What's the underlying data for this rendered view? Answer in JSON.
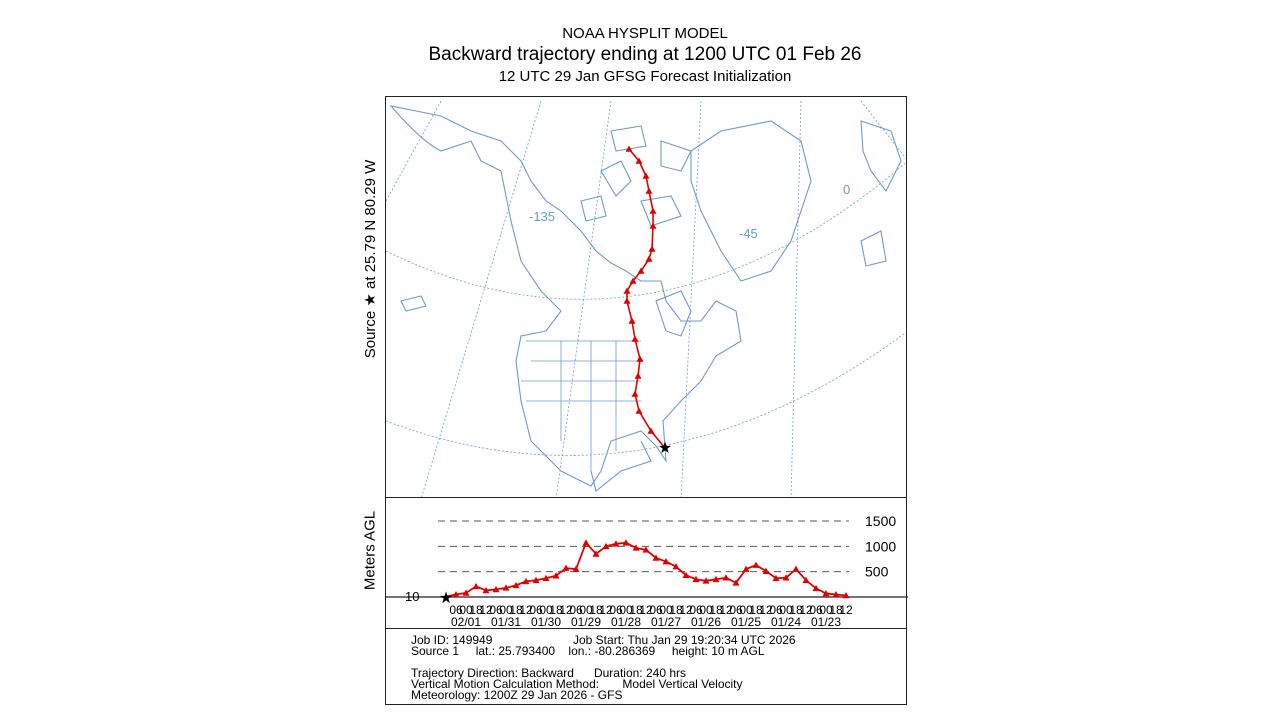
{
  "header": {
    "title": "NOAA HYSPLIT MODEL",
    "subtitle": "Backward trajectory ending at 1200 UTC 01 Feb 26",
    "initialization": "12 UTC 29 Jan    GFSG  Forecast Initialization"
  },
  "source_label": "Source ★ at   25.79 N   80.29 W",
  "map": {
    "meridian_labels": [
      "-135",
      "-45",
      "0"
    ],
    "coast_color": "#6b9bd1",
    "trajectory_color": "#e00000"
  },
  "chart_data": {
    "type": "line",
    "ylabel": "Meters AGL",
    "x_unit": "hours back from 1200 UTC 01 Feb",
    "x": [
      0,
      6,
      12,
      18,
      24,
      30,
      36,
      42,
      48,
      54,
      60,
      66,
      72,
      78,
      84,
      90,
      96,
      102,
      108,
      114,
      120,
      126,
      132,
      138,
      144,
      150,
      156,
      162,
      168,
      174,
      180,
      186,
      192,
      198,
      204,
      210,
      216,
      222,
      228,
      234,
      240
    ],
    "y": [
      10,
      50,
      80,
      210,
      130,
      150,
      180,
      230,
      310,
      330,
      370,
      420,
      570,
      550,
      1070,
      850,
      1000,
      1050,
      1070,
      970,
      930,
      770,
      700,
      600,
      430,
      350,
      320,
      350,
      380,
      280,
      550,
      630,
      510,
      370,
      380,
      550,
      330,
      170,
      70,
      50,
      30
    ],
    "ylim": [
      0,
      1500
    ],
    "xlim": [
      0,
      240
    ],
    "yticks": [
      500,
      1000,
      1500
    ],
    "start_height_label": "10",
    "grid": "dashed horizontal",
    "hour_tick_labels": [
      "06",
      "00",
      "18",
      "12",
      "06",
      "00",
      "18",
      "12",
      "06",
      "00",
      "18",
      "12",
      "06",
      "00",
      "18",
      "12",
      "06",
      "00",
      "18",
      "12",
      "06",
      "00",
      "18",
      "12",
      "06",
      "00",
      "18",
      "12",
      "06",
      "00",
      "18",
      "12",
      "06",
      "00",
      "18",
      "12",
      "06",
      "00",
      "18",
      "12"
    ],
    "date_labels": [
      "02/01",
      "01/31",
      "01/30",
      "01/29",
      "01/28",
      "01/27",
      "01/26",
      "01/25",
      "01/24",
      "01/23"
    ],
    "color": "#e00000"
  },
  "info": {
    "job_id": "Job ID: 149949",
    "job_start": "Job Start: Thu Jan 29 19:20:34 UTC 2026",
    "source_line": "Source 1     lat.: 25.793400    lon.: -80.286369     height: 10 m AGL",
    "direction_line": "Trajectory Direction: Backward      Duration: 240 hrs",
    "vertical_line": "Vertical Motion Calculation Method:       Model Vertical Velocity",
    "meteorology_line": "Meteorology: 1200Z 29 Jan 2026 - GFS"
  }
}
